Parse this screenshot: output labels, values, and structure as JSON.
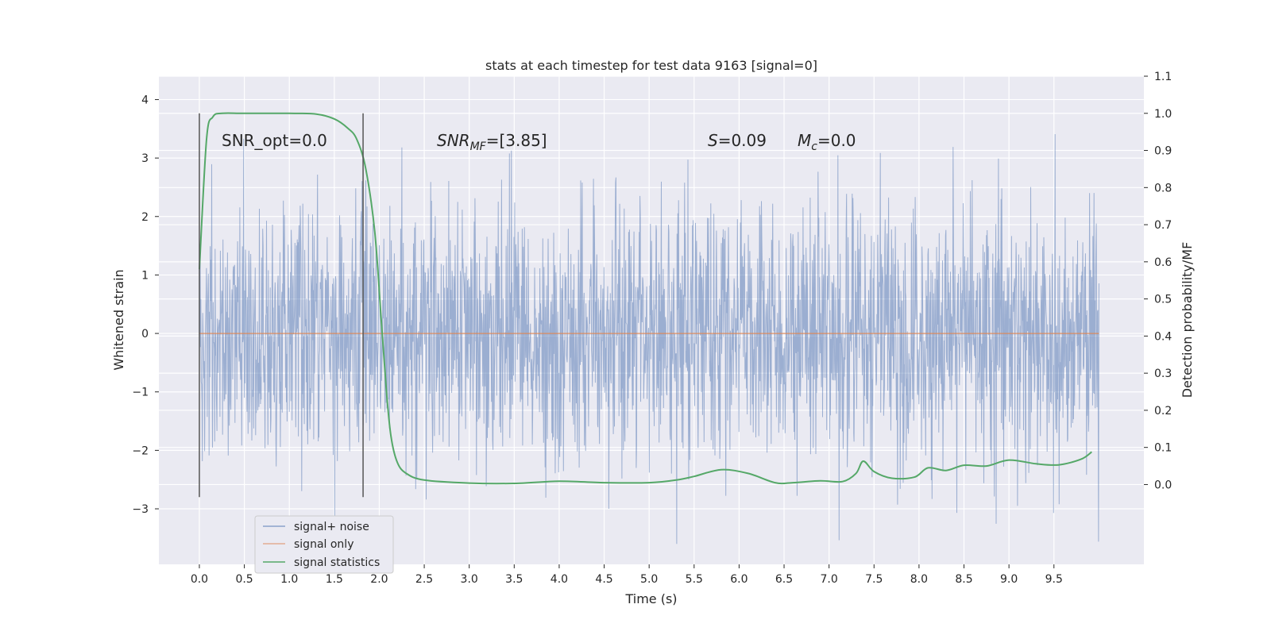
{
  "chart_data": {
    "type": "line",
    "title": "stats at each timestep for test data 9163 [signal=0]",
    "xlabel": "Time (s)",
    "ylabel": "Whitened strain",
    "y2label": "Detection probability/MF",
    "xlim": [
      -0.45,
      10.5
    ],
    "ylim": [
      -3.95,
      4.4
    ],
    "y2lim": [
      -0.215,
      1.1
    ],
    "xticks": [
      0.0,
      0.5,
      1.0,
      1.5,
      2.0,
      2.5,
      3.0,
      3.5,
      4.0,
      4.5,
      5.0,
      5.5,
      6.0,
      6.5,
      7.0,
      7.5,
      8.0,
      8.5,
      9.0,
      9.5
    ],
    "xtick_labels": [
      "0.0",
      "0.5",
      "1.0",
      "1.5",
      "2.0",
      "2.5",
      "3.0",
      "3.5",
      "4.0",
      "4.5",
      "5.0",
      "5.5",
      "6.0",
      "6.5",
      "7.0",
      "7.5",
      "8.0",
      "8.5",
      "9.0",
      "9.5"
    ],
    "yticks": [
      -3,
      -2,
      -1,
      0,
      1,
      2,
      3,
      4
    ],
    "ytick_labels": [
      "−3",
      "−2",
      "−1",
      "0",
      "1",
      "2",
      "3",
      "4"
    ],
    "y2ticks": [
      0.0,
      0.1,
      0.2,
      0.3,
      0.4,
      0.5,
      0.6,
      0.7,
      0.8,
      0.9,
      1.0,
      1.1
    ],
    "y2tick_labels": [
      "0.0",
      "0.1",
      "0.2",
      "0.3",
      "0.4",
      "0.5",
      "0.6",
      "0.7",
      "0.8",
      "0.9",
      "1.0",
      "1.1"
    ],
    "grid": true,
    "legend_position": "lower-left",
    "background": "#eaeaf2",
    "series": [
      {
        "name": "signal+ noise",
        "color": "#4c72b0",
        "axis": "left",
        "kind": "noise",
        "x_range": [
          0.0,
          10.0
        ],
        "approx_std": 1.1,
        "approx_min": -3.6,
        "approx_max": 4.05
      },
      {
        "name": "signal only",
        "color": "#dd8452",
        "axis": "left",
        "x": [
          0.0,
          10.0
        ],
        "y": [
          0.0,
          0.0
        ]
      },
      {
        "name": "signal statistics",
        "color": "#55a868",
        "axis": "right",
        "x": [
          0.0,
          0.08,
          0.15,
          0.25,
          0.5,
          1.0,
          1.3,
          1.5,
          1.65,
          1.75,
          1.85,
          1.95,
          2.02,
          2.08,
          2.13,
          2.2,
          2.3,
          2.5,
          3.0,
          3.5,
          4.0,
          4.5,
          5.0,
          5.3,
          5.5,
          5.8,
          6.1,
          6.4,
          6.6,
          6.9,
          7.15,
          7.3,
          7.38,
          7.5,
          7.7,
          7.95,
          8.1,
          8.3,
          8.5,
          8.75,
          9.0,
          9.3,
          9.55,
          9.8,
          9.92
        ],
        "y": [
          0.58,
          0.93,
          0.99,
          1.0,
          1.0,
          1.0,
          0.998,
          0.985,
          0.96,
          0.93,
          0.85,
          0.68,
          0.45,
          0.25,
          0.13,
          0.06,
          0.03,
          0.012,
          0.004,
          0.003,
          0.009,
          0.005,
          0.005,
          0.012,
          0.022,
          0.04,
          0.03,
          0.005,
          0.005,
          0.01,
          0.008,
          0.03,
          0.063,
          0.035,
          0.017,
          0.02,
          0.045,
          0.038,
          0.052,
          0.05,
          0.066,
          0.056,
          0.053,
          0.068,
          0.088
        ]
      }
    ],
    "vlines": [
      {
        "x": 0.0,
        "y2_from": -0.0,
        "color": "#555555"
      },
      {
        "x": 1.82,
        "y2_from": -0.0,
        "color": "#555555"
      }
    ],
    "annotations": {
      "snr_opt": "SNR_opt=0.0",
      "snr_mf_main": "SNR",
      "snr_mf_sub": "MF",
      "snr_mf_rest": "=[3.85]",
      "s_main": "S",
      "s_rest": "=0.09",
      "mc_main": "M",
      "mc_sub": "c",
      "mc_rest": "=0.0"
    }
  }
}
